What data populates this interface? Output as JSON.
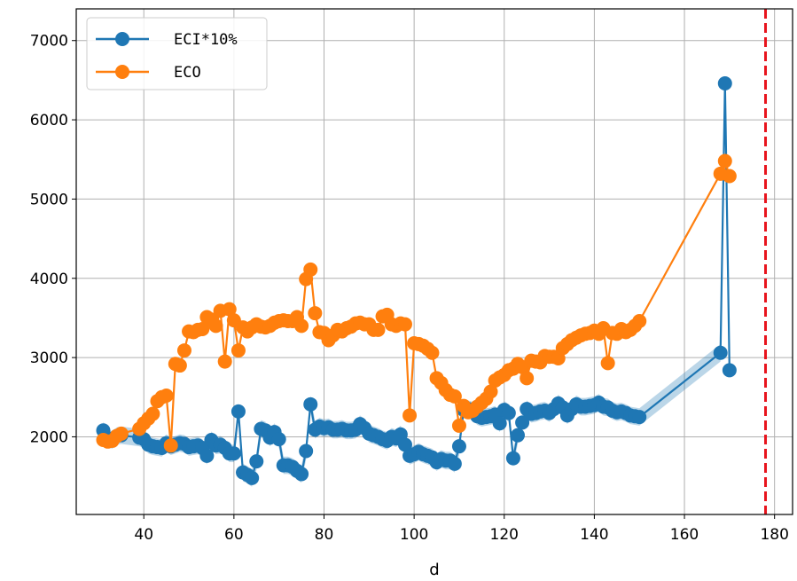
{
  "chart_data": {
    "type": "line",
    "title": "",
    "xlabel": "d",
    "ylabel": "",
    "xlim": [
      25,
      184
    ],
    "ylim": [
      1020,
      7400
    ],
    "xticks": [
      40,
      60,
      80,
      100,
      120,
      140,
      160,
      180
    ],
    "yticks": [
      2000,
      3000,
      4000,
      5000,
      6000,
      7000
    ],
    "grid": true,
    "legend_position": "upper left",
    "vline": {
      "x": 178,
      "color": "#e8141d",
      "style": "dashed"
    },
    "series": [
      {
        "name": "ECI*10%",
        "color": "#1f77b4",
        "band_color": "#1f77b4",
        "band_half_width": 110,
        "points": [
          [
            31,
            2080
          ],
          [
            32,
            1980
          ],
          [
            33,
            1960
          ],
          [
            34,
            2010
          ],
          [
            35,
            2020
          ],
          [
            39,
            1990
          ],
          [
            40,
            1970
          ],
          [
            41,
            1900
          ],
          [
            42,
            1880
          ],
          [
            43,
            1870
          ],
          [
            44,
            1860
          ],
          [
            45,
            1920
          ],
          [
            46,
            1880
          ],
          [
            47,
            1900
          ],
          [
            48,
            1920
          ],
          [
            49,
            1910
          ],
          [
            50,
            1870
          ],
          [
            51,
            1880
          ],
          [
            52,
            1890
          ],
          [
            53,
            1860
          ],
          [
            54,
            1760
          ],
          [
            55,
            1960
          ],
          [
            56,
            1890
          ],
          [
            57,
            1900
          ],
          [
            58,
            1860
          ],
          [
            59,
            1790
          ],
          [
            60,
            1790
          ],
          [
            61,
            2320
          ],
          [
            62,
            1550
          ],
          [
            63,
            1520
          ],
          [
            64,
            1480
          ],
          [
            65,
            1690
          ],
          [
            66,
            2100
          ],
          [
            67,
            2080
          ],
          [
            68,
            1990
          ],
          [
            69,
            2060
          ],
          [
            70,
            1970
          ],
          [
            71,
            1640
          ],
          [
            72,
            1640
          ],
          [
            73,
            1620
          ],
          [
            74,
            1570
          ],
          [
            75,
            1530
          ],
          [
            76,
            1820
          ],
          [
            77,
            2410
          ],
          [
            78,
            2090
          ],
          [
            79,
            2130
          ],
          [
            80,
            2110
          ],
          [
            81,
            2120
          ],
          [
            82,
            2090
          ],
          [
            83,
            2090
          ],
          [
            84,
            2100
          ],
          [
            85,
            2080
          ],
          [
            86,
            2080
          ],
          [
            87,
            2090
          ],
          [
            88,
            2160
          ],
          [
            89,
            2110
          ],
          [
            90,
            2040
          ],
          [
            91,
            2020
          ],
          [
            92,
            2000
          ],
          [
            93,
            1970
          ],
          [
            94,
            1950
          ],
          [
            95,
            2000
          ],
          [
            96,
            1980
          ],
          [
            97,
            2030
          ],
          [
            98,
            1900
          ],
          [
            99,
            1760
          ],
          [
            100,
            1780
          ],
          [
            101,
            1810
          ],
          [
            102,
            1780
          ],
          [
            103,
            1760
          ],
          [
            104,
            1740
          ],
          [
            105,
            1680
          ],
          [
            106,
            1720
          ],
          [
            107,
            1700
          ],
          [
            108,
            1700
          ],
          [
            109,
            1660
          ],
          [
            110,
            1880
          ],
          [
            111,
            2340
          ],
          [
            112,
            2350
          ],
          [
            113,
            2330
          ],
          [
            114,
            2260
          ],
          [
            115,
            2240
          ],
          [
            116,
            2250
          ],
          [
            117,
            2260
          ],
          [
            118,
            2280
          ],
          [
            119,
            2170
          ],
          [
            120,
            2340
          ],
          [
            121,
            2300
          ],
          [
            122,
            1730
          ],
          [
            123,
            2020
          ],
          [
            124,
            2180
          ],
          [
            125,
            2350
          ],
          [
            126,
            2290
          ],
          [
            127,
            2300
          ],
          [
            128,
            2320
          ],
          [
            129,
            2330
          ],
          [
            130,
            2300
          ],
          [
            131,
            2350
          ],
          [
            132,
            2420
          ],
          [
            133,
            2370
          ],
          [
            134,
            2270
          ],
          [
            135,
            2350
          ],
          [
            136,
            2410
          ],
          [
            137,
            2380
          ],
          [
            138,
            2380
          ],
          [
            139,
            2390
          ],
          [
            140,
            2400
          ],
          [
            141,
            2430
          ],
          [
            142,
            2380
          ],
          [
            143,
            2370
          ],
          [
            144,
            2330
          ],
          [
            145,
            2310
          ],
          [
            146,
            2320
          ],
          [
            147,
            2300
          ],
          [
            148,
            2270
          ],
          [
            149,
            2260
          ],
          [
            150,
            2250
          ],
          [
            168,
            3060
          ],
          [
            169,
            6460
          ],
          [
            170,
            2840
          ]
        ]
      },
      {
        "name": "ECO",
        "color": "#ff7f0e",
        "points": [
          [
            31,
            1960
          ],
          [
            32,
            1940
          ],
          [
            33,
            1950
          ],
          [
            34,
            2010
          ],
          [
            35,
            2040
          ],
          [
            39,
            2100
          ],
          [
            40,
            2170
          ],
          [
            41,
            2230
          ],
          [
            42,
            2290
          ],
          [
            43,
            2450
          ],
          [
            44,
            2500
          ],
          [
            45,
            2520
          ],
          [
            46,
            1890
          ],
          [
            47,
            2920
          ],
          [
            48,
            2900
          ],
          [
            49,
            3090
          ],
          [
            50,
            3330
          ],
          [
            51,
            3320
          ],
          [
            52,
            3350
          ],
          [
            53,
            3360
          ],
          [
            54,
            3510
          ],
          [
            55,
            3480
          ],
          [
            56,
            3400
          ],
          [
            57,
            3590
          ],
          [
            58,
            2950
          ],
          [
            59,
            3610
          ],
          [
            60,
            3470
          ],
          [
            61,
            3090
          ],
          [
            62,
            3380
          ],
          [
            63,
            3330
          ],
          [
            64,
            3380
          ],
          [
            65,
            3420
          ],
          [
            66,
            3390
          ],
          [
            67,
            3380
          ],
          [
            68,
            3400
          ],
          [
            69,
            3440
          ],
          [
            70,
            3460
          ],
          [
            71,
            3470
          ],
          [
            72,
            3460
          ],
          [
            73,
            3460
          ],
          [
            74,
            3510
          ],
          [
            75,
            3400
          ],
          [
            76,
            3990
          ],
          [
            77,
            4110
          ],
          [
            78,
            3560
          ],
          [
            79,
            3320
          ],
          [
            80,
            3310
          ],
          [
            81,
            3220
          ],
          [
            82,
            3280
          ],
          [
            83,
            3350
          ],
          [
            84,
            3330
          ],
          [
            85,
            3370
          ],
          [
            86,
            3390
          ],
          [
            87,
            3430
          ],
          [
            88,
            3440
          ],
          [
            89,
            3420
          ],
          [
            90,
            3420
          ],
          [
            91,
            3350
          ],
          [
            92,
            3350
          ],
          [
            93,
            3520
          ],
          [
            94,
            3540
          ],
          [
            95,
            3420
          ],
          [
            96,
            3400
          ],
          [
            97,
            3430
          ],
          [
            98,
            3420
          ],
          [
            99,
            2270
          ],
          [
            100,
            3180
          ],
          [
            101,
            3170
          ],
          [
            102,
            3150
          ],
          [
            103,
            3110
          ],
          [
            104,
            3060
          ],
          [
            105,
            2740
          ],
          [
            106,
            2680
          ],
          [
            107,
            2590
          ],
          [
            108,
            2530
          ],
          [
            109,
            2510
          ],
          [
            110,
            2140
          ],
          [
            111,
            2390
          ],
          [
            112,
            2310
          ],
          [
            113,
            2330
          ],
          [
            114,
            2380
          ],
          [
            115,
            2430
          ],
          [
            116,
            2480
          ],
          [
            117,
            2570
          ],
          [
            118,
            2710
          ],
          [
            119,
            2750
          ],
          [
            120,
            2780
          ],
          [
            121,
            2840
          ],
          [
            122,
            2860
          ],
          [
            123,
            2920
          ],
          [
            124,
            2880
          ],
          [
            125,
            2740
          ],
          [
            126,
            2960
          ],
          [
            127,
            2950
          ],
          [
            128,
            2940
          ],
          [
            129,
            3020
          ],
          [
            130,
            3010
          ],
          [
            131,
            3010
          ],
          [
            132,
            2990
          ],
          [
            133,
            3120
          ],
          [
            134,
            3170
          ],
          [
            135,
            3220
          ],
          [
            136,
            3250
          ],
          [
            137,
            3280
          ],
          [
            138,
            3300
          ],
          [
            139,
            3310
          ],
          [
            140,
            3340
          ],
          [
            141,
            3300
          ],
          [
            142,
            3370
          ],
          [
            143,
            2930
          ],
          [
            144,
            3310
          ],
          [
            145,
            3300
          ],
          [
            146,
            3360
          ],
          [
            147,
            3320
          ],
          [
            148,
            3350
          ],
          [
            149,
            3400
          ],
          [
            150,
            3460
          ],
          [
            168,
            5320
          ],
          [
            169,
            5480
          ],
          [
            170,
            5290
          ]
        ]
      }
    ]
  }
}
